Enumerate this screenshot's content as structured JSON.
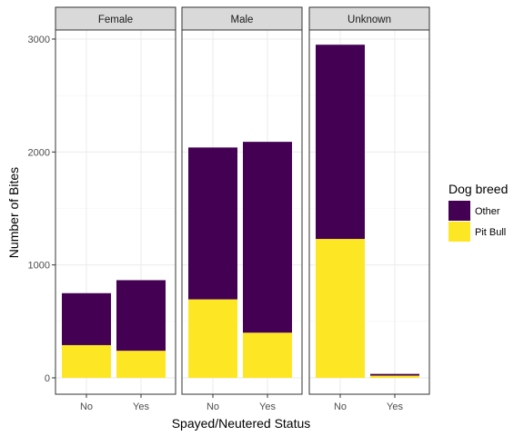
{
  "chart_data": {
    "type": "bar",
    "stacked": true,
    "facet_by": "sex",
    "panels": [
      {
        "label": "Female",
        "categories": [
          "No",
          "Yes"
        ],
        "other": [
          460,
          625
        ],
        "pit_bull": [
          290,
          240
        ]
      },
      {
        "label": "Male",
        "categories": [
          "No",
          "Yes"
        ],
        "other": [
          1345,
          1690
        ],
        "pit_bull": [
          695,
          400
        ]
      },
      {
        "label": "Unknown",
        "categories": [
          "No",
          "Yes"
        ],
        "other": [
          1720,
          15
        ],
        "pit_bull": [
          1230,
          20
        ]
      }
    ],
    "series": [
      {
        "name": "Other",
        "color": "#440154"
      },
      {
        "name": "Pit Bull",
        "color": "#fde725"
      }
    ],
    "xlabel": "Spayed/Neutered Status",
    "ylabel": "Number of Bites",
    "ylim": [
      0,
      3000
    ],
    "yticks": [
      "0",
      "1000",
      "2000",
      "3000"
    ],
    "legend": {
      "title": "Dog breed",
      "position": "right"
    },
    "grid": true
  }
}
